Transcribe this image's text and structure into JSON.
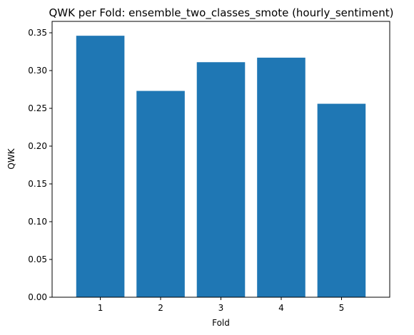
{
  "chart_data": {
    "type": "bar",
    "title": "QWK per Fold: ensemble_two_classes_smote (hourly_sentiment)",
    "xlabel": "Fold",
    "ylabel": "QWK",
    "categories": [
      "1",
      "2",
      "3",
      "4",
      "5"
    ],
    "values": [
      0.346,
      0.273,
      0.311,
      0.317,
      0.256
    ],
    "ylim": [
      0,
      0.365
    ],
    "yticks": [
      0.0,
      0.05,
      0.1,
      0.15,
      0.2,
      0.25,
      0.3,
      0.35
    ],
    "ytick_labels": [
      "0.00",
      "0.05",
      "0.10",
      "0.15",
      "0.20",
      "0.25",
      "0.30",
      "0.35"
    ],
    "grid": false,
    "bar_color": "#1f77b4"
  }
}
